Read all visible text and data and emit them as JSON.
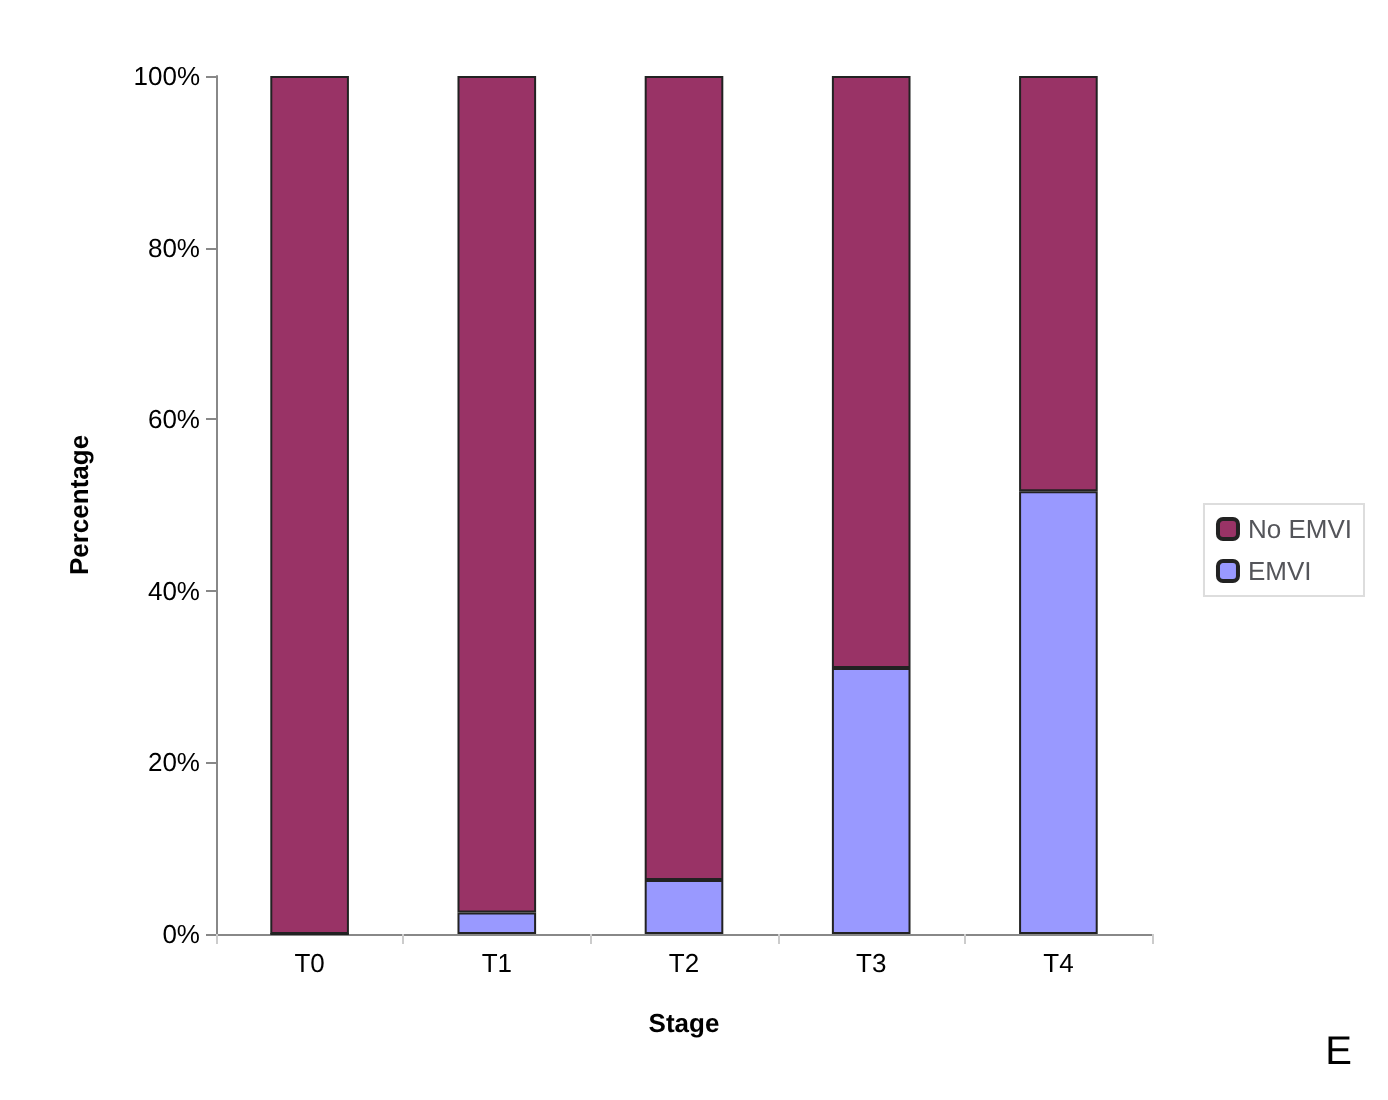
{
  "chart_data": {
    "type": "bar",
    "stacked": true,
    "xlabel": "Stage",
    "ylabel": "Percentage",
    "categories": [
      "T0",
      "T1",
      "T2",
      "T3",
      "T4"
    ],
    "series": [
      {
        "name": "EMVI",
        "color": "#9999ff",
        "values": [
          0,
          2.5,
          6.3,
          31,
          51.6
        ]
      },
      {
        "name": "No EMVI",
        "color": "#993366",
        "values": [
          100,
          97.5,
          93.7,
          69,
          48.4
        ]
      }
    ],
    "ylim": [
      0,
      100
    ],
    "yticks": [
      {
        "value": 0,
        "label": "0%"
      },
      {
        "value": 20,
        "label": "20%"
      },
      {
        "value": 40,
        "label": "40%"
      },
      {
        "value": 60,
        "label": "60%"
      },
      {
        "value": 80,
        "label": "80%"
      },
      {
        "value": 100,
        "label": "100%"
      }
    ],
    "grid": false,
    "legend": "right",
    "annotations": [
      "E"
    ]
  }
}
